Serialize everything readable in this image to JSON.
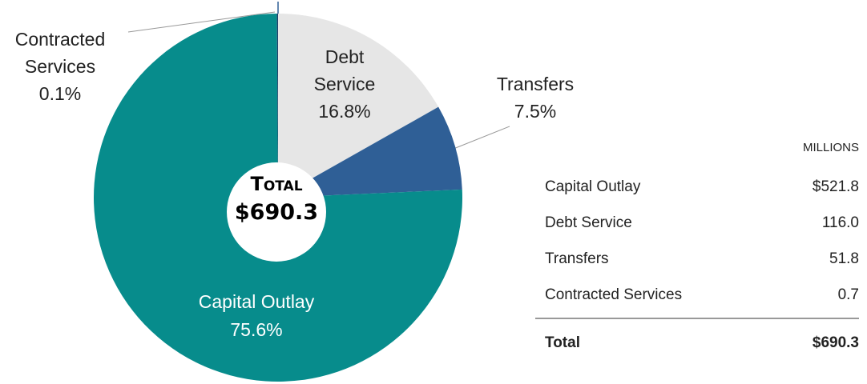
{
  "chart_data": {
    "type": "pie",
    "categories": [
      "Capital Outlay",
      "Debt Service",
      "Transfers",
      "Contracted Services"
    ],
    "values": [
      75.6,
      16.8,
      7.5,
      0.1
    ],
    "value_labels": [
      "75.6%",
      "16.8%",
      "7.5%",
      "0.1%"
    ],
    "colors": [
      "#078c8c",
      "#e6e6e6",
      "#2f5f96",
      "#1f3f6b"
    ],
    "center_label": "Total",
    "center_value": "$690.3"
  },
  "table": {
    "header": "MILLIONS",
    "rows": [
      [
        "Capital Outlay",
        "$521.8"
      ],
      [
        "Debt Service",
        "116.0"
      ],
      [
        "Transfers",
        "51.8"
      ],
      [
        "Contracted Services",
        "0.7"
      ]
    ],
    "total": [
      "Total",
      "$690.3"
    ]
  }
}
